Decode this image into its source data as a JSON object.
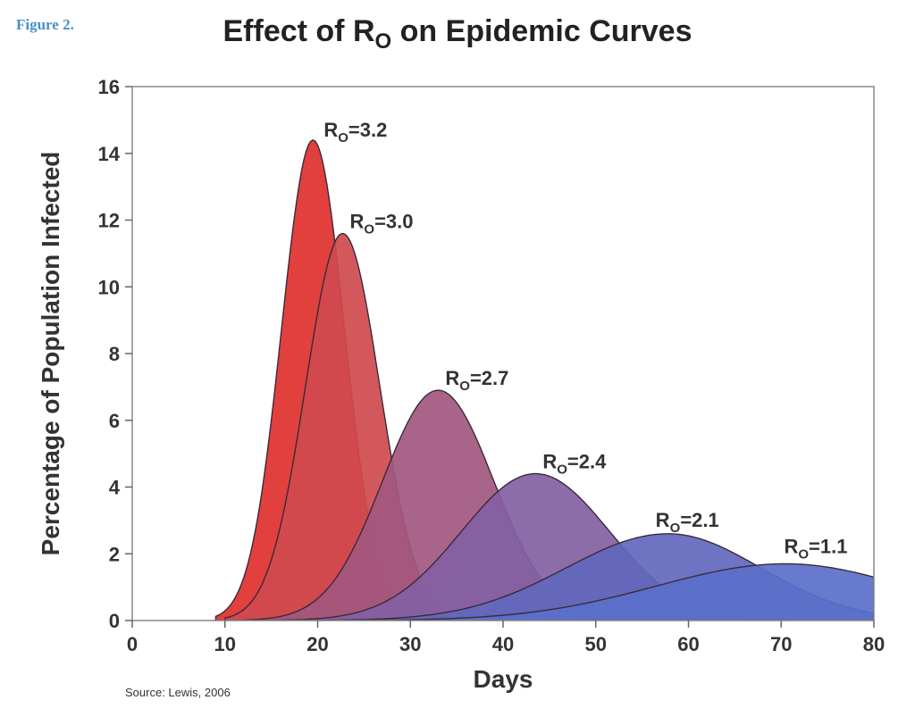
{
  "figure_label": "Figure 2.",
  "title": {
    "main": "Effect of R",
    "sub": "O",
    "rest": " on Epidemic Curves"
  },
  "source": "Source: Lewis, 2006",
  "chart_data": {
    "type": "area",
    "xlabel": "Days",
    "ylabel": "Percentage of Population Infected",
    "xlim": [
      0,
      80
    ],
    "ylim": [
      0,
      16
    ],
    "xticks": [
      0,
      10,
      20,
      30,
      40,
      50,
      60,
      70,
      80
    ],
    "yticks": [
      0,
      2,
      4,
      6,
      8,
      10,
      12,
      14,
      16
    ],
    "grid": false,
    "series": [
      {
        "name": "RO=3.2",
        "label_main": "R",
        "label_sub": "O",
        "label_value": "=3.2",
        "start": 9,
        "peak_day": 19.5,
        "peak_value": 14.4,
        "rise_width": 3.4,
        "fall_width": 3.4,
        "color": "#e0302c"
      },
      {
        "name": "RO=3.0",
        "label_main": "R",
        "label_sub": "O",
        "label_value": "=3.0",
        "start": 10,
        "peak_day": 22.7,
        "peak_value": 11.6,
        "rise_width": 4.0,
        "fall_width": 4.0,
        "color": "#cf4a4e"
      },
      {
        "name": "RO=2.7",
        "label_main": "R",
        "label_sub": "O",
        "label_value": "=2.7",
        "start": 12,
        "peak_day": 33.0,
        "peak_value": 6.9,
        "rise_width": 6.0,
        "fall_width": 6.0,
        "color": "#a2587f"
      },
      {
        "name": "RO=2.4",
        "label_main": "R",
        "label_sub": "O",
        "label_value": "=2.4",
        "start": 15,
        "peak_day": 43.5,
        "peak_value": 4.4,
        "rise_width": 8.0,
        "fall_width": 8.0,
        "color": "#8360a3"
      },
      {
        "name": "RO=2.1",
        "label_main": "R",
        "label_sub": "O",
        "label_value": "=2.1",
        "start": 20,
        "peak_day": 57.8,
        "peak_value": 2.6,
        "rise_width": 11.0,
        "fall_width": 10.0,
        "color": "#6268bc"
      },
      {
        "name": "RO=1.1",
        "label_main": "R",
        "label_sub": "O",
        "label_value": "=1.1",
        "start": 25,
        "peak_day": 70.5,
        "peak_value": 1.7,
        "rise_width": 14.0,
        "fall_width": 13.0,
        "color": "#5a6fca"
      }
    ]
  }
}
